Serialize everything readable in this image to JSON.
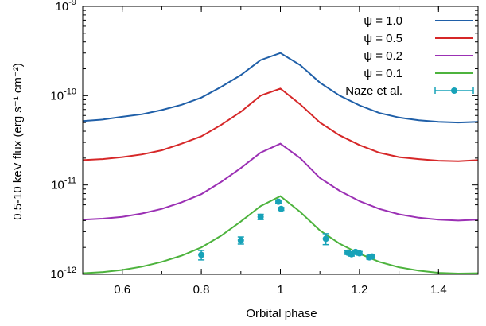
{
  "chart_data": {
    "type": "line",
    "title": "",
    "xlabel": "Orbital phase",
    "ylabel": "0.5-10 keV flux (erg s⁻¹ cm⁻²)",
    "xlim": [
      0.5,
      1.5
    ],
    "ylim": [
      1e-12,
      1e-09
    ],
    "yscale": "log",
    "grid": false,
    "legend_position": "top-right",
    "x_ticks": [
      {
        "value": 0.6,
        "label": "0.6"
      },
      {
        "value": 0.8,
        "label": "0.8"
      },
      {
        "value": 1.0,
        "label": "1"
      },
      {
        "value": 1.2,
        "label": "1.2"
      },
      {
        "value": 1.4,
        "label": "1.4"
      }
    ],
    "y_ticks": [
      {
        "value": 1e-12,
        "base": "10",
        "exp": "-12"
      },
      {
        "value": 1e-11,
        "base": "10",
        "exp": "-11"
      },
      {
        "value": 1e-10,
        "base": "10",
        "exp": "-10"
      },
      {
        "value": 1e-09,
        "base": "10",
        "exp": "-9"
      }
    ],
    "series": [
      {
        "name": "ψ = 1.0",
        "color": "#1f5fa8",
        "x": [
          0.5,
          0.55,
          0.6,
          0.65,
          0.7,
          0.75,
          0.8,
          0.85,
          0.9,
          0.95,
          1.0,
          1.05,
          1.1,
          1.15,
          1.2,
          1.25,
          1.3,
          1.35,
          1.4,
          1.45,
          1.5
        ],
        "y": [
          5.2e-11,
          5.4e-11,
          5.8e-11,
          6.2e-11,
          6.9e-11,
          7.9e-11,
          9.5e-11,
          1.25e-10,
          1.7e-10,
          2.5e-10,
          3e-10,
          2.2e-10,
          1.4e-10,
          1e-10,
          7.8e-11,
          6.4e-11,
          5.7e-11,
          5.3e-11,
          5.1e-11,
          5e-11,
          5.1e-11
        ]
      },
      {
        "name": "ψ = 0.5",
        "color": "#d62728",
        "x": [
          0.5,
          0.55,
          0.6,
          0.65,
          0.7,
          0.75,
          0.8,
          0.85,
          0.9,
          0.95,
          1.0,
          1.05,
          1.1,
          1.15,
          1.2,
          1.25,
          1.3,
          1.35,
          1.4,
          1.45,
          1.5
        ],
        "y": [
          1.9e-11,
          1.95e-11,
          2.05e-11,
          2.2e-11,
          2.45e-11,
          2.9e-11,
          3.5e-11,
          4.7e-11,
          6.6e-11,
          1e-10,
          1.2e-10,
          8e-11,
          5e-11,
          3.6e-11,
          2.8e-11,
          2.3e-11,
          2.05e-11,
          1.95e-11,
          1.87e-11,
          1.85e-11,
          1.9e-11
        ]
      },
      {
        "name": "ψ = 0.2",
        "color": "#9b30b4",
        "x": [
          0.5,
          0.55,
          0.6,
          0.65,
          0.7,
          0.75,
          0.8,
          0.85,
          0.9,
          0.95,
          1.0,
          1.05,
          1.1,
          1.15,
          1.2,
          1.25,
          1.3,
          1.35,
          1.4,
          1.45,
          1.5
        ],
        "y": [
          4.1e-12,
          4.2e-12,
          4.4e-12,
          4.8e-12,
          5.4e-12,
          6.4e-12,
          7.9e-12,
          1.08e-11,
          1.55e-11,
          2.3e-11,
          2.9e-11,
          2e-11,
          1.2e-11,
          8.6e-12,
          6.6e-12,
          5.4e-12,
          4.7e-12,
          4.3e-12,
          4.1e-12,
          4e-12,
          4.1e-12
        ]
      },
      {
        "name": "ψ = 0.1",
        "color": "#4db33d",
        "x": [
          0.5,
          0.55,
          0.6,
          0.65,
          0.7,
          0.75,
          0.8,
          0.85,
          0.9,
          0.95,
          1.0,
          1.05,
          1.1,
          1.15,
          1.2,
          1.25,
          1.3,
          1.35,
          1.4,
          1.45,
          1.5
        ],
        "y": [
          1.03e-12,
          1.06e-12,
          1.12e-12,
          1.22e-12,
          1.38e-12,
          1.62e-12,
          2e-12,
          2.7e-12,
          3.9e-12,
          5.8e-12,
          7.5e-12,
          5e-12,
          3.1e-12,
          2.2e-12,
          1.7e-12,
          1.38e-12,
          1.2e-12,
          1.1e-12,
          1.04e-12,
          1.02e-12,
          1.03e-12
        ]
      }
    ],
    "observations": {
      "name": "Naze et al.",
      "color": "#17a2b8",
      "points": [
        {
          "x": 0.8,
          "y": 1.65e-12,
          "yerr": 2e-13
        },
        {
          "x": 0.9,
          "y": 2.4e-12,
          "yerr": 2.2e-13
        },
        {
          "x": 0.95,
          "y": 4.4e-12,
          "yerr": 3e-13
        },
        {
          "x": 0.995,
          "y": 6.5e-12,
          "yerr": 2.5e-13
        },
        {
          "x": 1.002,
          "y": 5.4e-12,
          "yerr": 2e-13
        },
        {
          "x": 1.115,
          "y": 2.5e-12,
          "yerr": 3.5e-13
        },
        {
          "x": 1.17,
          "y": 1.75e-12,
          "yerr": 8e-14
        },
        {
          "x": 1.18,
          "y": 1.68e-12,
          "yerr": 8e-14
        },
        {
          "x": 1.19,
          "y": 1.78e-12,
          "yerr": 8e-14
        },
        {
          "x": 1.2,
          "y": 1.72e-12,
          "yerr": 8e-14
        },
        {
          "x": 1.225,
          "y": 1.55e-12,
          "yerr": 7e-14
        },
        {
          "x": 1.232,
          "y": 1.58e-12,
          "yerr": 7e-14
        }
      ]
    }
  }
}
